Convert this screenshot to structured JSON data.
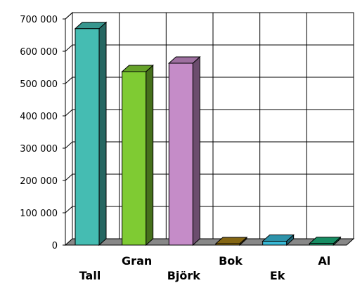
{
  "chart_data": {
    "type": "bar",
    "title": "",
    "xlabel": "",
    "ylabel": "",
    "ylim": [
      0,
      700000
    ],
    "yticks": [
      0,
      100000,
      200000,
      300000,
      400000,
      500000,
      600000,
      700000
    ],
    "ytick_labels": [
      "0",
      "100 000",
      "200 000",
      "300 000",
      "400 000",
      "500 000",
      "600 000",
      "700 000"
    ],
    "grid": true,
    "categories": [
      "Tall",
      "Gran",
      "Björk",
      "Bok",
      "Ek",
      "Al"
    ],
    "values": [
      670000,
      537000,
      563000,
      2000,
      12000,
      5000
    ],
    "colors": [
      "#45bcb2",
      "#7fcb33",
      "#c58cc8",
      "#a67f18",
      "#39b8d5",
      "#1db07c"
    ],
    "style": "3d-bars"
  }
}
